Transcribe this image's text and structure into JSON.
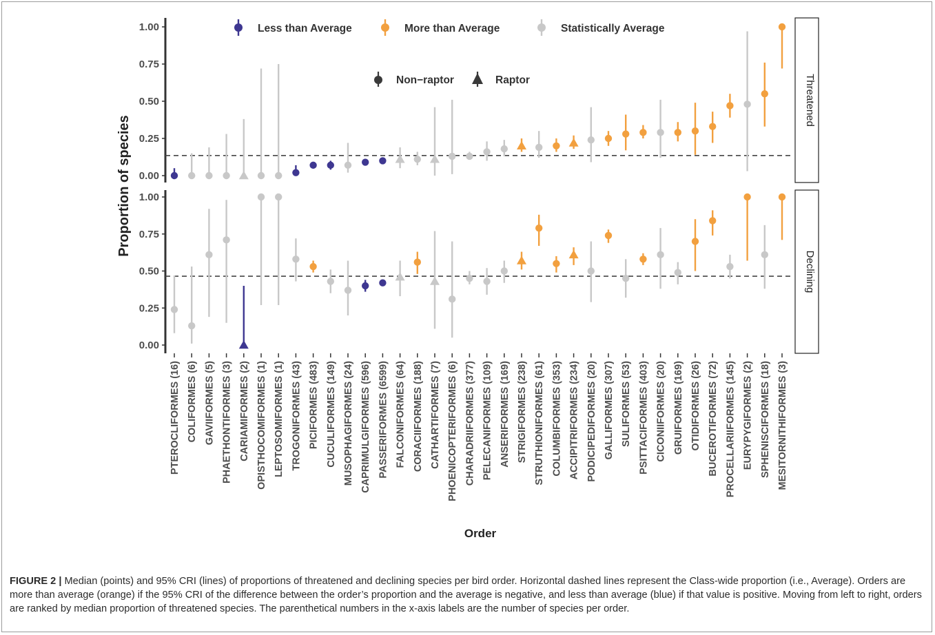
{
  "chart_data": {
    "type": "scatter",
    "xlabel": "Order",
    "ylabel": "Proportion of species",
    "ylim": [
      0,
      1
    ],
    "yticks": [
      "0.00",
      "0.25",
      "0.50",
      "0.75",
      "1.00"
    ],
    "ytick_values": [
      0,
      0.25,
      0.5,
      0.75,
      1
    ],
    "grid": false,
    "legend_position": "top",
    "legend_status": [
      {
        "label": "Less than Average",
        "color": "#3e3791"
      },
      {
        "label": "More than Average",
        "color": "#f2a03f"
      },
      {
        "label": "Statistically Average",
        "color": "#c8c8c8"
      }
    ],
    "legend_shape": [
      {
        "label": "Non−raptor",
        "shape": "circle"
      },
      {
        "label": "Raptor",
        "shape": "triangle"
      }
    ],
    "colors": {
      "less": "#3e3791",
      "more": "#f2a03f",
      "avg": "#c8c8c8",
      "shape_legend": "#3a3a3a",
      "axis": "#333333",
      "tick_text": "#4d4d4d"
    },
    "categories": [
      "PTEROCLIFORMES (16)",
      "COLIFORMES (6)",
      "GAVIIFORMES (5)",
      "PHAETHONTIFORMES (3)",
      "CARIAMIFORMES (2)",
      "OPISTHOCOMIFORMES (1)",
      "LEPTOSOMIFORMES (1)",
      "TROGONIFORMES (43)",
      "PICIFORMES (483)",
      "CUCULIFORMES (149)",
      "MUSOPHAGIFORMES (24)",
      "CAPRIMULGIFORMES (596)",
      "PASSERIFORMES (6599)",
      "FALCONIFORMES (64)",
      "CORACIIFORMES (188)",
      "CATHARTIFORMES (7)",
      "PHOENICOPTERIFORMES (6)",
      "CHARADRIIFORMES (377)",
      "PELECANIFORMES (109)",
      "ANSERIFORMES (169)",
      "STRIGIFORMES (238)",
      "STRUTHIONIFORMES (61)",
      "COLUMBIFORMES (353)",
      "ACCIPITRIFORMES (234)",
      "PODICIPEDIFORMES (20)",
      "GALLIFORMES (307)",
      "SULIFORMES (53)",
      "PSITTACIFORMES (403)",
      "CICONIIFORMES (20)",
      "GRUIFORMES (169)",
      "OTIDIFORMES (26)",
      "BUCEROTIFORMES (72)",
      "PROCELLARIIFORMES (145)",
      "EURYPYGIFORMES (2)",
      "SPHENISCIFORMES (18)",
      "MESITORNITHIFORMES (3)"
    ],
    "raptor": [
      false,
      false,
      false,
      false,
      true,
      false,
      false,
      false,
      false,
      false,
      false,
      false,
      false,
      true,
      false,
      true,
      false,
      false,
      false,
      false,
      true,
      false,
      false,
      true,
      false,
      false,
      false,
      false,
      false,
      false,
      false,
      false,
      false,
      false,
      false,
      false
    ],
    "panels": [
      {
        "name": "Threatened",
        "average": 0.135,
        "status": [
          "less",
          "avg",
          "avg",
          "avg",
          "avg",
          "avg",
          "avg",
          "less",
          "less",
          "less",
          "avg",
          "less",
          "less",
          "avg",
          "avg",
          "avg",
          "avg",
          "avg",
          "avg",
          "avg",
          "more",
          "avg",
          "more",
          "more",
          "avg",
          "more",
          "more",
          "more",
          "avg",
          "more",
          "more",
          "more",
          "more",
          "avg",
          "more",
          "more"
        ],
        "median": [
          0.0,
          0.0,
          0.0,
          0.0,
          0.0,
          0.0,
          0.0,
          0.02,
          0.07,
          0.07,
          0.07,
          0.09,
          0.1,
          0.11,
          0.11,
          0.11,
          0.13,
          0.13,
          0.16,
          0.18,
          0.2,
          0.19,
          0.2,
          0.22,
          0.24,
          0.25,
          0.28,
          0.29,
          0.29,
          0.29,
          0.3,
          0.33,
          0.47,
          0.48,
          0.55,
          1.0
        ],
        "lower": [
          0.0,
          0.0,
          0.0,
          0.0,
          0.0,
          0.0,
          0.0,
          0.0,
          0.06,
          0.04,
          0.02,
          0.08,
          0.09,
          0.05,
          0.07,
          0.0,
          0.01,
          0.11,
          0.1,
          0.13,
          0.16,
          0.12,
          0.16,
          0.18,
          0.09,
          0.2,
          0.17,
          0.25,
          0.12,
          0.23,
          0.14,
          0.22,
          0.39,
          0.03,
          0.33,
          0.72
        ],
        "upper": [
          0.05,
          0.15,
          0.19,
          0.28,
          0.38,
          0.72,
          0.75,
          0.07,
          0.08,
          0.1,
          0.22,
          0.1,
          0.11,
          0.19,
          0.16,
          0.46,
          0.51,
          0.16,
          0.23,
          0.24,
          0.25,
          0.3,
          0.25,
          0.27,
          0.46,
          0.3,
          0.41,
          0.34,
          0.51,
          0.36,
          0.49,
          0.43,
          0.55,
          0.97,
          0.76,
          1.0
        ]
      },
      {
        "name": "Declining",
        "average": 0.465,
        "status": [
          "avg",
          "avg",
          "avg",
          "avg",
          "less",
          "avg",
          "avg",
          "avg",
          "more",
          "avg",
          "avg",
          "less",
          "less",
          "avg",
          "more",
          "avg",
          "avg",
          "avg",
          "avg",
          "avg",
          "more",
          "more",
          "more",
          "more",
          "avg",
          "more",
          "avg",
          "more",
          "avg",
          "avg",
          "more",
          "more",
          "avg",
          "more",
          "avg",
          "more"
        ],
        "median": [
          0.24,
          0.13,
          0.61,
          0.71,
          0.0,
          1.0,
          1.0,
          0.58,
          0.53,
          0.43,
          0.37,
          0.4,
          0.42,
          0.46,
          0.56,
          0.43,
          0.31,
          0.45,
          0.43,
          0.5,
          0.57,
          0.79,
          0.55,
          0.61,
          0.5,
          0.74,
          0.45,
          0.58,
          0.61,
          0.49,
          0.7,
          0.84,
          0.53,
          1.0,
          0.61,
          1.0
        ],
        "lower": [
          0.08,
          0.01,
          0.19,
          0.15,
          0.0,
          0.27,
          0.27,
          0.43,
          0.49,
          0.35,
          0.2,
          0.36,
          0.4,
          0.33,
          0.48,
          0.11,
          0.05,
          0.41,
          0.34,
          0.42,
          0.51,
          0.67,
          0.49,
          0.54,
          0.29,
          0.69,
          0.32,
          0.54,
          0.38,
          0.41,
          0.5,
          0.74,
          0.45,
          0.57,
          0.38,
          0.71
        ],
        "upper": [
          0.47,
          0.53,
          0.92,
          0.98,
          0.4,
          1.0,
          1.0,
          0.72,
          0.57,
          0.51,
          0.57,
          0.44,
          0.44,
          0.57,
          0.63,
          0.77,
          0.7,
          0.5,
          0.52,
          0.57,
          0.63,
          0.88,
          0.6,
          0.66,
          0.7,
          0.78,
          0.58,
          0.62,
          0.79,
          0.56,
          0.85,
          0.91,
          0.61,
          1.0,
          0.81,
          1.0
        ]
      }
    ]
  },
  "caption": {
    "label": "FIGURE 2 |",
    "text": "Median (points) and 95% CRI (lines) of proportions of threatened and declining species per bird order. Horizontal dashed lines represent the Class-wide proportion (i.e., Average). Orders are more than average (orange) if the 95% CRI of the difference between the order’s proportion and the average is negative, and less than average (blue) if that value is positive. Moving from left to right, orders are ranked by median proportion of threatened species. The parenthetical numbers in the x-axis labels are the number of species per order."
  }
}
